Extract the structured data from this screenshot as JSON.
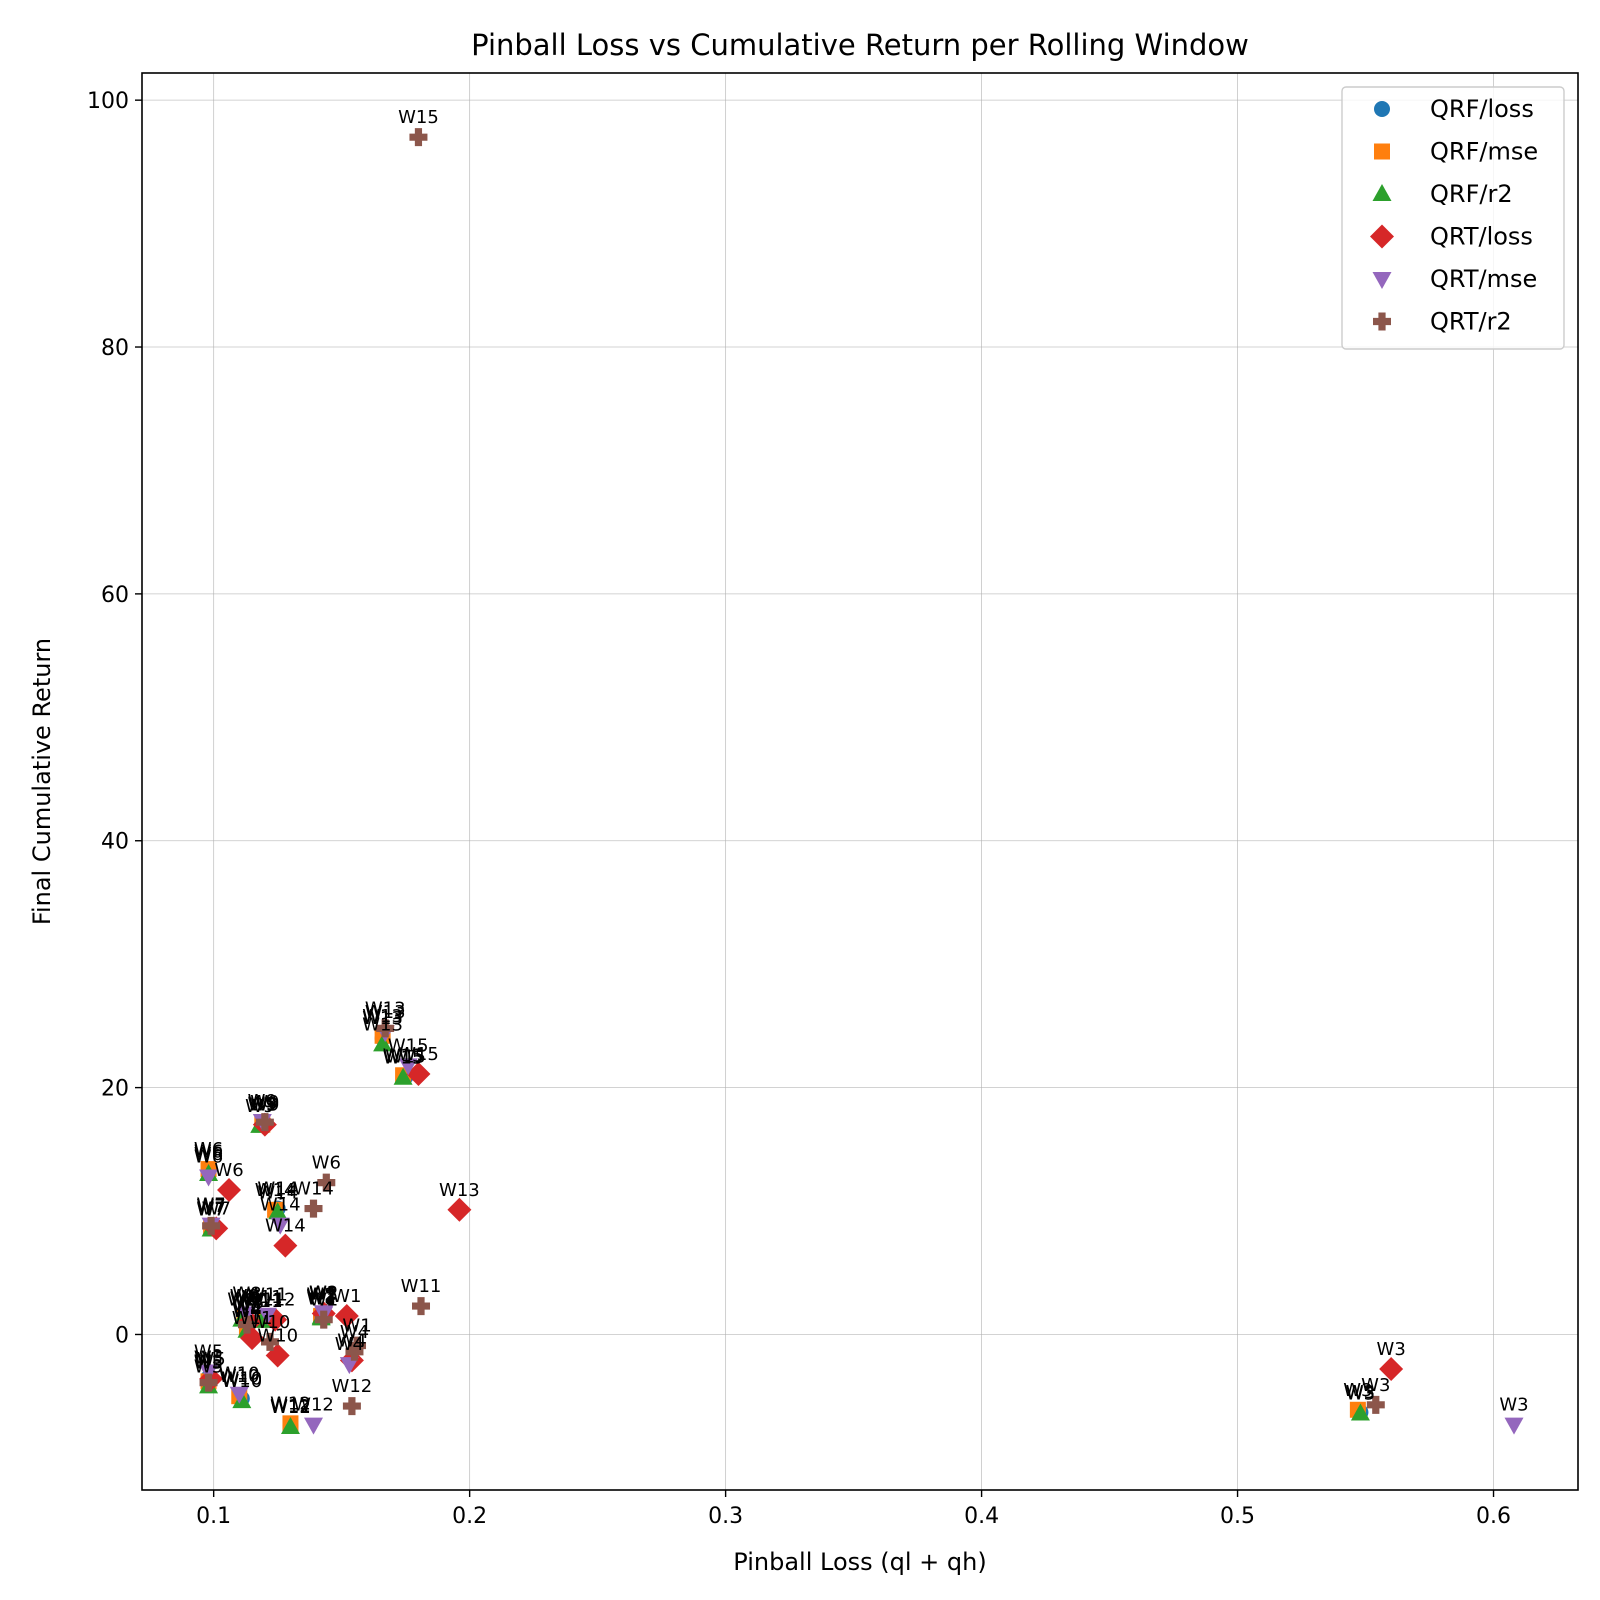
{
  "chart_data": {
    "type": "scatter",
    "title": "Pinball Loss vs Cumulative Return per Rolling Window",
    "xlabel": "Pinball Loss (ql + qh)",
    "ylabel": "Final Cumulative Return",
    "xlim": [
      0.072,
      0.633
    ],
    "ylim": [
      -12.6,
      102.2
    ],
    "xticks": [
      0.1,
      0.2,
      0.3,
      0.4,
      0.5,
      0.6
    ],
    "xtick_labels": [
      "0.1",
      "0.2",
      "0.3",
      "0.4",
      "0.5",
      "0.6"
    ],
    "yticks": [
      0,
      20,
      40,
      60,
      80,
      100
    ],
    "ytick_labels": [
      "0",
      "20",
      "40",
      "60",
      "80",
      "100"
    ],
    "grid": true,
    "legend_position": "top-right",
    "series": [
      {
        "name": "QRF/loss",
        "marker": "circle",
        "color": "#1f77b4",
        "points": [
          {
            "label": "W1",
            "x": 0.142,
            "y": 1.5
          },
          {
            "label": "W2",
            "x": 0.142,
            "y": 1.6
          },
          {
            "label": "W3",
            "x": 0.548,
            "y": -6.3
          },
          {
            "label": "W4",
            "x": 0.113,
            "y": 0.5
          },
          {
            "label": "W5",
            "x": 0.098,
            "y": -3.5
          },
          {
            "label": "W6",
            "x": 0.098,
            "y": 13.2
          },
          {
            "label": "W7",
            "x": 0.099,
            "y": 8.8
          },
          {
            "label": "W8",
            "x": 0.112,
            "y": 1.5
          },
          {
            "label": "W9",
            "x": 0.119,
            "y": 17.1
          },
          {
            "label": "W10",
            "x": 0.111,
            "y": -5.2
          },
          {
            "label": "W11",
            "x": 0.119,
            "y": 1.4
          },
          {
            "label": "W12",
            "x": 0.13,
            "y": -7.4
          },
          {
            "label": "W13",
            "x": 0.166,
            "y": 24.0
          },
          {
            "label": "W14",
            "x": 0.125,
            "y": 10.2
          },
          {
            "label": "W15",
            "x": 0.175,
            "y": 20.9
          }
        ]
      },
      {
        "name": "QRF/mse",
        "marker": "square",
        "color": "#ff7f0e",
        "points": [
          {
            "label": "W1",
            "x": 0.142,
            "y": 1.4
          },
          {
            "label": "W2",
            "x": 0.142,
            "y": 1.5
          },
          {
            "label": "W3",
            "x": 0.547,
            "y": -6.1
          },
          {
            "label": "W4",
            "x": 0.113,
            "y": 0.4
          },
          {
            "label": "W5",
            "x": 0.098,
            "y": -3.8
          },
          {
            "label": "W6",
            "x": 0.098,
            "y": 13.4
          },
          {
            "label": "W7",
            "x": 0.099,
            "y": 8.6
          },
          {
            "label": "W8",
            "x": 0.112,
            "y": 1.3
          },
          {
            "label": "W9",
            "x": 0.119,
            "y": 17.0
          },
          {
            "label": "W10",
            "x": 0.11,
            "y": -5.0
          },
          {
            "label": "W11",
            "x": 0.12,
            "y": 1.2
          },
          {
            "label": "W12",
            "x": 0.13,
            "y": -7.2
          },
          {
            "label": "W13",
            "x": 0.166,
            "y": 24.2
          },
          {
            "label": "W14",
            "x": 0.124,
            "y": 10.1
          },
          {
            "label": "W15",
            "x": 0.174,
            "y": 21.0
          }
        ]
      },
      {
        "name": "QRF/r2",
        "marker": "triangle-up",
        "color": "#2ca02c",
        "points": [
          {
            "label": "W1",
            "x": 0.142,
            "y": 1.3
          },
          {
            "label": "W2",
            "x": 0.142,
            "y": 1.4
          },
          {
            "label": "W3",
            "x": 0.548,
            "y": -6.4
          },
          {
            "label": "W4",
            "x": 0.113,
            "y": 0.3
          },
          {
            "label": "W5",
            "x": 0.098,
            "y": -4.2
          },
          {
            "label": "W6",
            "x": 0.098,
            "y": 13.0
          },
          {
            "label": "W7",
            "x": 0.099,
            "y": 8.5
          },
          {
            "label": "W8",
            "x": 0.111,
            "y": 1.2
          },
          {
            "label": "W9",
            "x": 0.118,
            "y": 16.9
          },
          {
            "label": "W10",
            "x": 0.111,
            "y": -5.4
          },
          {
            "label": "W11",
            "x": 0.119,
            "y": 1.1
          },
          {
            "label": "W12",
            "x": 0.13,
            "y": -7.5
          },
          {
            "label": "W13",
            "x": 0.166,
            "y": 23.5
          },
          {
            "label": "W14",
            "x": 0.125,
            "y": 9.9
          },
          {
            "label": "W15",
            "x": 0.174,
            "y": 20.8
          }
        ]
      },
      {
        "name": "QRT/loss",
        "marker": "diamond",
        "color": "#d62728",
        "points": [
          {
            "label": "W1",
            "x": 0.152,
            "y": 1.5
          },
          {
            "label": "W2",
            "x": 0.143,
            "y": 1.7
          },
          {
            "label": "W3",
            "x": 0.56,
            "y": -2.8
          },
          {
            "label": "W4",
            "x": 0.154,
            "y": -2.1
          },
          {
            "label": "W5",
            "x": 0.099,
            "y": -3.6
          },
          {
            "label": "W6",
            "x": 0.106,
            "y": 11.7
          },
          {
            "label": "W7",
            "x": 0.101,
            "y": 8.6
          },
          {
            "label": "W8",
            "x": 0.114,
            "y": 1.0
          },
          {
            "label": "W9",
            "x": 0.12,
            "y": 17.0
          },
          {
            "label": "W10",
            "x": 0.125,
            "y": -1.7
          },
          {
            "label": "W11",
            "x": 0.115,
            "y": -0.3
          },
          {
            "label": "W12",
            "x": 0.124,
            "y": 1.2
          },
          {
            "label": "W13",
            "x": 0.196,
            "y": 10.1
          },
          {
            "label": "W14",
            "x": 0.128,
            "y": 7.2
          },
          {
            "label": "W15",
            "x": 0.18,
            "y": 21.1
          }
        ]
      },
      {
        "name": "QRT/mse",
        "marker": "triangle-down",
        "color": "#9467bd",
        "points": [
          {
            "label": "W1",
            "x": 0.143,
            "y": 1.7
          },
          {
            "label": "W2",
            "x": 0.143,
            "y": 1.8
          },
          {
            "label": "W3",
            "x": 0.608,
            "y": -7.3
          },
          {
            "label": "W4",
            "x": 0.153,
            "y": -2.4
          },
          {
            "label": "W5",
            "x": 0.098,
            "y": -3.0
          },
          {
            "label": "W6",
            "x": 0.098,
            "y": 12.8
          },
          {
            "label": "W7",
            "x": 0.099,
            "y": 8.9
          },
          {
            "label": "W8",
            "x": 0.113,
            "y": 1.7
          },
          {
            "label": "W9",
            "x": 0.119,
            "y": 17.3
          },
          {
            "label": "W10",
            "x": 0.11,
            "y": -4.8
          },
          {
            "label": "W11",
            "x": 0.121,
            "y": 1.6
          },
          {
            "label": "W12",
            "x": 0.139,
            "y": -7.3
          },
          {
            "label": "W13",
            "x": 0.167,
            "y": 24.5
          },
          {
            "label": "W14",
            "x": 0.126,
            "y": 8.9
          },
          {
            "label": "W15",
            "x": 0.176,
            "y": 21.8
          }
        ]
      },
      {
        "name": "QRT/r2",
        "marker": "plus",
        "color": "#8c564b",
        "points": [
          {
            "label": "W1",
            "x": 0.156,
            "y": -0.9
          },
          {
            "label": "W2",
            "x": 0.143,
            "y": 1.2
          },
          {
            "label": "W3",
            "x": 0.554,
            "y": -5.7
          },
          {
            "label": "W4",
            "x": 0.155,
            "y": -1.4
          },
          {
            "label": "W5",
            "x": 0.098,
            "y": -3.9
          },
          {
            "label": "W6",
            "x": 0.144,
            "y": 12.3
          },
          {
            "label": "W7",
            "x": 0.099,
            "y": 8.8
          },
          {
            "label": "W8",
            "x": 0.113,
            "y": 0.8
          },
          {
            "label": "W9",
            "x": 0.12,
            "y": 17.2
          },
          {
            "label": "W10",
            "x": 0.122,
            "y": -0.6
          },
          {
            "label": "W11",
            "x": 0.181,
            "y": 2.3
          },
          {
            "label": "W12",
            "x": 0.154,
            "y": -5.8
          },
          {
            "label": "W13",
            "x": 0.167,
            "y": 24.8
          },
          {
            "label": "W14",
            "x": 0.139,
            "y": 10.2
          },
          {
            "label": "W15",
            "x": 0.18,
            "y": 97.0
          }
        ]
      }
    ]
  }
}
